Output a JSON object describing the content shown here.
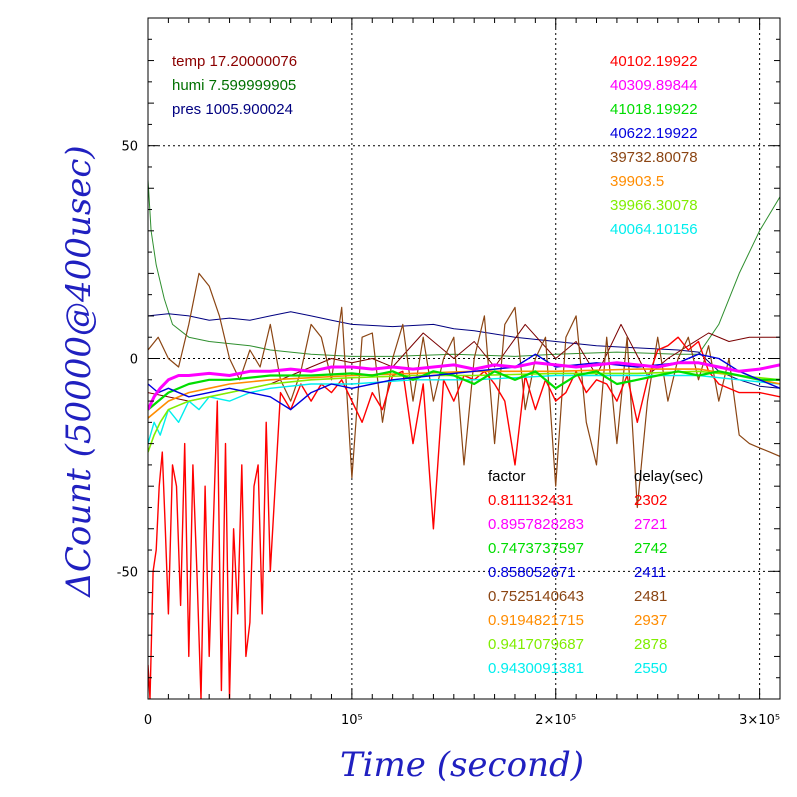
{
  "chart_data": {
    "type": "line",
    "xlabel": "Time (second)",
    "ylabel": "ΔCount (50000@400usec)",
    "xlim": [
      0,
      310000
    ],
    "ylim": [
      -80,
      80
    ],
    "x_ticks": [
      {
        "value": 0,
        "label": "0"
      },
      {
        "value": 100000,
        "label": "10⁵"
      },
      {
        "value": 200000,
        "label": "2×10⁵"
      },
      {
        "value": 300000,
        "label": "3×10⁵"
      }
    ],
    "y_ticks": [
      {
        "value": 50,
        "label": "50"
      },
      {
        "value": 0,
        "label": "0"
      },
      {
        "value": -50,
        "label": "-50"
      }
    ],
    "grid": true,
    "env_labels": [
      {
        "text": "temp 17.20000076",
        "color": "#8b0000"
      },
      {
        "text": "humi 7.599999905",
        "color": "#007000"
      },
      {
        "text": "pres 1005.900024",
        "color": "#000080"
      }
    ],
    "mean_labels": [
      {
        "text": "40102.19922",
        "color": "#ff0000"
      },
      {
        "text": "40309.89844",
        "color": "#ff00ff"
      },
      {
        "text": "41018.19922",
        "color": "#00dd00"
      },
      {
        "text": "40622.19922",
        "color": "#0000dd"
      },
      {
        "text": "39732.80078",
        "color": "#8b4513"
      },
      {
        "text": "39903.5",
        "color": "#ff8c00"
      },
      {
        "text": "39966.30078",
        "color": "#80ee00"
      },
      {
        "text": "40064.10156",
        "color": "#00eeee"
      }
    ],
    "table_headers": {
      "factor": "factor",
      "delay": "delay(sec)"
    },
    "table_rows": [
      {
        "factor": "0.811132431",
        "delay": "2302",
        "color": "#ff0000"
      },
      {
        "factor": "0.8957828283",
        "delay": "2721",
        "color": "#ff00ff"
      },
      {
        "factor": "0.7473737597",
        "delay": "2742",
        "color": "#00dd00"
      },
      {
        "factor": "0.858052671",
        "delay": "2411",
        "color": "#0000dd"
      },
      {
        "factor": "0.7525140643",
        "delay": "2481",
        "color": "#8b4513"
      },
      {
        "factor": "0.9194821715",
        "delay": "2937",
        "color": "#ff8c00"
      },
      {
        "factor": "0.9417079687",
        "delay": "2878",
        "color": "#80ee00"
      },
      {
        "factor": "0.9430091381",
        "delay": "2550",
        "color": "#00eeee"
      }
    ],
    "series": [
      {
        "color": "#2f8f2f",
        "width": 1,
        "x": [
          0,
          1500,
          4000,
          8000,
          12000,
          20000,
          30000,
          40000,
          50000,
          60000,
          80000,
          100000,
          120000,
          150000,
          180000,
          200000,
          230000,
          260000,
          270000,
          280000,
          290000,
          300000,
          310000
        ],
        "y": [
          42,
          30,
          22,
          14,
          8,
          5,
          4,
          3.5,
          3,
          2,
          1,
          0.5,
          0.5,
          1,
          0.5,
          1,
          1.5,
          1,
          1,
          8,
          20,
          30,
          38
        ]
      },
      {
        "color": "#000080",
        "width": 1,
        "x": [
          0,
          10000,
          20000,
          30000,
          40000,
          50000,
          60000,
          70000,
          80000,
          90000,
          100000,
          120000,
          140000,
          150000,
          160000,
          180000,
          200000,
          220000,
          240000,
          260000,
          270000,
          280000,
          290000,
          300000,
          310000
        ],
        "y": [
          10,
          10.5,
          10,
          9,
          9.5,
          9,
          10,
          11,
          10,
          9,
          8,
          7.5,
          8,
          7,
          6.5,
          5,
          4,
          3,
          2.5,
          2,
          1.5,
          -3,
          -5,
          -6.5,
          -7
        ]
      },
      {
        "color": "#7a0000",
        "width": 1,
        "x": [
          0,
          20000,
          40000,
          60000,
          70000,
          80000,
          90000,
          100000,
          110000,
          120000,
          135000,
          150000,
          160000,
          170000,
          185000,
          200000,
          210000,
          220000,
          232000,
          245000,
          255000,
          265000,
          275000,
          285000,
          295000,
          310000
        ],
        "y": [
          -8,
          -10,
          -8,
          -6,
          -4,
          -2,
          0,
          -1,
          0,
          -2,
          6,
          0,
          4,
          -2,
          8,
          0,
          4,
          -4,
          8,
          -4,
          0,
          3,
          6,
          4,
          5,
          5
        ]
      },
      {
        "color": "#8b4513",
        "width": 1.2,
        "x": [
          0,
          5000,
          10000,
          15000,
          20000,
          25000,
          30000,
          35000,
          40000,
          45000,
          50000,
          55000,
          60000,
          65000,
          70000,
          75000,
          80000,
          85000,
          90000,
          95000,
          100000,
          105000,
          110000,
          115000,
          120000,
          125000,
          130000,
          135000,
          140000,
          145000,
          150000,
          155000,
          160000,
          165000,
          170000,
          175000,
          180000,
          185000,
          190000,
          195000,
          200000,
          205000,
          210000,
          215000,
          220000,
          225000,
          230000,
          235000,
          240000,
          245000,
          250000,
          255000,
          260000,
          265000,
          270000,
          275000,
          280000,
          285000,
          290000,
          295000,
          300000,
          305000,
          310000
        ],
        "y": [
          2,
          5,
          0,
          -2,
          8,
          20,
          17,
          10,
          0,
          -5,
          2,
          -2,
          8,
          -5,
          -10,
          -3,
          8,
          5,
          -5,
          12,
          -28,
          5,
          6,
          -15,
          0,
          8,
          -10,
          5,
          -10,
          0,
          5,
          -25,
          0,
          10,
          -20,
          8,
          12,
          -12,
          0,
          5,
          -30,
          5,
          10,
          -15,
          -25,
          5,
          -20,
          5,
          -35,
          -10,
          5,
          -10,
          0,
          5,
          -5,
          3,
          -10,
          0,
          -18,
          -20,
          -21,
          -22,
          -23
        ]
      },
      {
        "color": "#ff0000",
        "width": 1.4,
        "x": [
          0,
          1000,
          2500,
          4000,
          5500,
          7000,
          8500,
          10000,
          12000,
          14000,
          16000,
          18000,
          20000,
          22000,
          24000,
          26000,
          28000,
          30000,
          32000,
          34000,
          36000,
          38000,
          40000,
          42000,
          44000,
          46000,
          48000,
          50000,
          52000,
          54000,
          56000,
          58000,
          60000,
          65000,
          70000,
          75000,
          80000,
          85000,
          90000,
          95000,
          100000,
          105000,
          110000,
          115000,
          120000,
          125000,
          130000,
          135000,
          140000,
          145000,
          150000,
          155000,
          160000,
          165000,
          170000,
          175000,
          180000,
          185000,
          190000,
          195000,
          200000,
          205000,
          210000,
          215000,
          220000,
          225000,
          230000,
          235000,
          240000,
          245000,
          250000,
          255000,
          260000,
          265000,
          270000,
          275000,
          280000,
          290000,
          300000,
          310000
        ],
        "y": [
          -72,
          -80,
          -50,
          -45,
          -30,
          -22,
          -40,
          -60,
          -25,
          -30,
          -58,
          -20,
          -70,
          -25,
          -50,
          -80,
          -30,
          -70,
          -40,
          -10,
          -78,
          -20,
          -80,
          -40,
          -60,
          -25,
          -70,
          -62,
          -30,
          -25,
          -60,
          -15,
          -50,
          -8,
          -12,
          -6,
          -10,
          -6,
          -8,
          -5,
          -10,
          -15,
          -8,
          -12,
          -4,
          -3,
          -20,
          -6,
          -40,
          -5,
          -10,
          -4,
          -5,
          -3,
          -6,
          -10,
          -25,
          -4,
          -12,
          -5,
          -10,
          -8,
          -3,
          -8,
          -5,
          -6,
          -10,
          -4,
          -15,
          -5,
          2,
          3,
          5,
          2,
          4,
          -3,
          -6,
          -8,
          -8,
          -9
        ]
      },
      {
        "color": "#00eeee",
        "width": 1.4,
        "x": [
          0,
          3000,
          6000,
          10000,
          15000,
          20000,
          25000,
          30000,
          40000,
          50000,
          60000,
          80000,
          100000,
          130000,
          160000,
          200000,
          240000,
          270000,
          290000,
          310000
        ],
        "y": [
          -20,
          -15,
          -18,
          -12,
          -15,
          -10,
          -12,
          -9,
          -10,
          -8,
          -7,
          -6,
          -6,
          -5,
          -5,
          -4,
          -4,
          -4,
          -5,
          -6
        ]
      },
      {
        "color": "#80ee00",
        "width": 1.6,
        "x": [
          0,
          3000,
          6000,
          10000,
          15000,
          20000,
          30000,
          40000,
          50000,
          60000,
          80000,
          100000,
          130000,
          160000,
          200000,
          240000,
          270000,
          290000,
          310000
        ],
        "y": [
          -22,
          -18,
          -15,
          -12,
          -11,
          -10,
          -9,
          -8,
          -7,
          -6,
          -5,
          -4.5,
          -4,
          -4,
          -3.5,
          -3.5,
          -3,
          -4,
          -5
        ]
      },
      {
        "color": "#ff8c00",
        "width": 1.6,
        "x": [
          0,
          5000,
          10000,
          20000,
          30000,
          40000,
          60000,
          80000,
          100000,
          130000,
          160000,
          200000,
          240000,
          270000,
          290000,
          310000
        ],
        "y": [
          -14,
          -12,
          -10,
          -8,
          -7,
          -6,
          -5,
          -4.5,
          -4,
          -3.5,
          -3,
          -3,
          -2.5,
          -2.5,
          -4,
          -6
        ]
      },
      {
        "color": "#00dd00",
        "width": 2.2,
        "x": [
          0,
          5000,
          10000,
          20000,
          30000,
          40000,
          60000,
          80000,
          100000,
          110000,
          120000,
          130000,
          140000,
          150000,
          160000,
          170000,
          180000,
          190000,
          200000,
          210000,
          220000,
          230000,
          240000,
          250000,
          260000,
          270000,
          280000,
          290000,
          300000,
          310000
        ],
        "y": [
          -12,
          -10,
          -8,
          -6,
          -5,
          -5,
          -4,
          -4,
          -3.5,
          -4,
          -3,
          -5,
          -3,
          -4,
          -6,
          -3,
          -5,
          -3,
          -7,
          -4,
          -3,
          -6,
          -5,
          -4,
          -3,
          -4,
          -3,
          -4,
          -5,
          -5
        ]
      },
      {
        "color": "#0000dd",
        "width": 1.4,
        "x": [
          0,
          5000,
          10000,
          20000,
          30000,
          40000,
          50000,
          60000,
          70000,
          80000,
          90000,
          100000,
          120000,
          140000,
          160000,
          180000,
          190000,
          200000,
          220000,
          240000,
          260000,
          270000,
          280000,
          290000,
          300000,
          310000
        ],
        "y": [
          -6,
          -8,
          -7,
          -9,
          -8,
          -7,
          -8,
          -9,
          -12,
          -8,
          -6,
          -7,
          -5,
          -4,
          -3,
          -2,
          1,
          -2,
          -1,
          -2,
          -1,
          1,
          0,
          -3,
          -5,
          -7
        ]
      },
      {
        "color": "#ff00ff",
        "width": 3,
        "x": [
          0,
          3000,
          6000,
          10000,
          15000,
          20000,
          30000,
          40000,
          50000,
          60000,
          70000,
          80000,
          90000,
          100000,
          110000,
          120000,
          130000,
          140000,
          150000,
          160000,
          170000,
          180000,
          190000,
          200000,
          210000,
          220000,
          230000,
          240000,
          250000,
          260000,
          270000,
          280000,
          290000,
          300000,
          310000
        ],
        "y": [
          -12,
          -9,
          -7,
          -5,
          -4,
          -4,
          -3.5,
          -4,
          -3,
          -3,
          -2.5,
          -3,
          -2,
          -2,
          -2.5,
          -2,
          -2.5,
          -2,
          -1.5,
          -2.5,
          -1.5,
          -2,
          -1,
          -1.5,
          -2,
          -1.5,
          -1,
          -1.5,
          -2,
          -1,
          -1,
          -2,
          -3,
          -2.5,
          -1.5
        ]
      }
    ]
  }
}
